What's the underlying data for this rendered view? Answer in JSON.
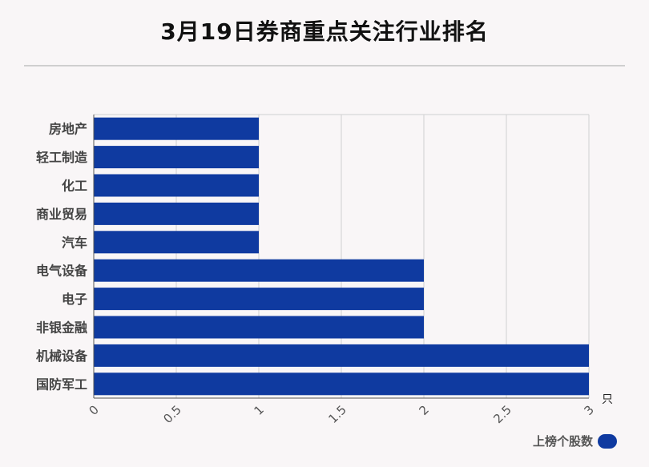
{
  "title": "3月19日券商重点关注行业排名",
  "legend": {
    "label": "上榜个股数"
  },
  "colors": {
    "bar": "#0f3aa0",
    "grid": "#d0d0d0",
    "axis": "#555555",
    "label": "#444444",
    "background": "#f9f6f7"
  },
  "chart_data": {
    "type": "bar",
    "orientation": "horizontal",
    "title": "3月19日券商重点关注行业排名",
    "categories": [
      "房地产",
      "轻工制造",
      "化工",
      "商业贸易",
      "汽车",
      "电气设备",
      "电子",
      "非银金融",
      "机械设备",
      "国防军工"
    ],
    "series": [
      {
        "name": "上榜个股数",
        "values": [
          1,
          1,
          1,
          1,
          1,
          2,
          2,
          2,
          3,
          3
        ]
      }
    ],
    "xlim": [
      0,
      3
    ],
    "xticks": [
      "0",
      "0.5",
      "1",
      "1.5",
      "2",
      "2.5",
      "3"
    ],
    "xunit": "只",
    "grid": true,
    "legend": "bottom-right"
  }
}
